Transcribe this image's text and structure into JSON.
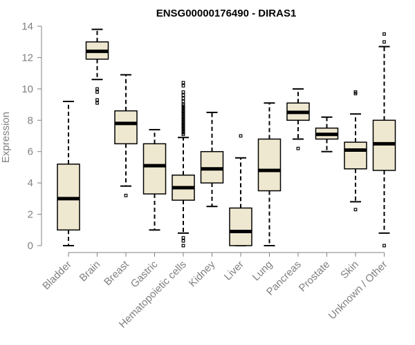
{
  "chart_data": {
    "type": "boxplot",
    "title": "ENSG00000176490 - DIRAS1",
    "xlabel": "",
    "ylabel": "Expression",
    "ylim": [
      0,
      14
    ],
    "yticks": [
      0,
      2,
      4,
      6,
      8,
      10,
      12,
      14
    ],
    "colors": {
      "box_fill": "#efe8d0",
      "box_stroke": "#000000",
      "axis": "#808080",
      "outlier": "#000000"
    },
    "series": [
      {
        "name": "Bladder",
        "whisker_low": 0.0,
        "q1": 1.0,
        "median": 3.0,
        "q3": 5.2,
        "whisker_high": 9.2,
        "outliers": []
      },
      {
        "name": "Brain",
        "whisker_low": 10.6,
        "q1": 11.9,
        "median": 12.4,
        "q3": 13.0,
        "whisker_high": 13.8,
        "outliers": [
          10.0,
          9.8,
          9.3,
          9.1
        ]
      },
      {
        "name": "Breast",
        "whisker_low": 3.8,
        "q1": 6.5,
        "median": 7.8,
        "q3": 8.6,
        "whisker_high": 10.9,
        "outliers": [
          3.2
        ]
      },
      {
        "name": "Gastric",
        "whisker_low": 1.0,
        "q1": 3.3,
        "median": 5.1,
        "q3": 6.5,
        "whisker_high": 7.4,
        "outliers": []
      },
      {
        "name": "Hematopoietic cells",
        "whisker_low": 0.8,
        "q1": 2.9,
        "median": 3.7,
        "q3": 4.5,
        "whisker_high": 6.9,
        "outliers": [
          0.0,
          0.3,
          0.5,
          7.1,
          7.2,
          7.3,
          7.4,
          7.5,
          7.6,
          7.7,
          7.8,
          7.9,
          8.0,
          8.1,
          8.2,
          8.3,
          8.4,
          8.5,
          8.6,
          8.7,
          8.8,
          8.9,
          9.0,
          9.2,
          9.4,
          9.6,
          9.8,
          10.2,
          10.4
        ]
      },
      {
        "name": "Kidney",
        "whisker_low": 2.5,
        "q1": 4.0,
        "median": 4.9,
        "q3": 6.0,
        "whisker_high": 8.5,
        "outliers": []
      },
      {
        "name": "Liver",
        "whisker_low": 0.0,
        "q1": 0.0,
        "median": 0.9,
        "q3": 2.4,
        "whisker_high": 5.6,
        "outliers": [
          7.0
        ]
      },
      {
        "name": "Lung",
        "whisker_low": 0.0,
        "q1": 3.5,
        "median": 4.8,
        "q3": 6.8,
        "whisker_high": 9.1,
        "outliers": []
      },
      {
        "name": "Pancreas",
        "whisker_low": 6.8,
        "q1": 8.0,
        "median": 8.5,
        "q3": 9.1,
        "whisker_high": 10.0,
        "outliers": [
          6.2
        ]
      },
      {
        "name": "Prostate",
        "whisker_low": 6.0,
        "q1": 6.8,
        "median": 7.1,
        "q3": 7.5,
        "whisker_high": 8.2,
        "outliers": []
      },
      {
        "name": "Skin",
        "whisker_low": 2.8,
        "q1": 4.9,
        "median": 6.1,
        "q3": 6.6,
        "whisker_high": 8.4,
        "outliers": [
          2.3,
          9.7,
          9.8
        ]
      },
      {
        "name": "Unknown / Other",
        "whisker_low": 0.8,
        "q1": 4.8,
        "median": 6.5,
        "q3": 8.0,
        "whisker_high": 12.7,
        "outliers": [
          0.0,
          13.0,
          13.5
        ]
      }
    ]
  }
}
